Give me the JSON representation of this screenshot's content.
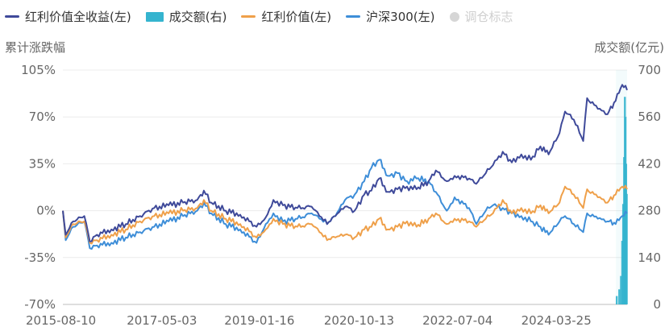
{
  "chart_data": {
    "type": "line",
    "legend": [
      {
        "key": "total",
        "label": "红利价值全收益(左)",
        "marker": "line",
        "color": "#3f4a9a"
      },
      {
        "key": "volume",
        "label": "成交额(右)",
        "marker": "bar",
        "color": "#35b4cf"
      },
      {
        "key": "value",
        "label": "红利价值(左)",
        "marker": "line",
        "color": "#efa04a"
      },
      {
        "key": "hs300",
        "label": "沪深300(左)",
        "marker": "line",
        "color": "#3e8ed8"
      },
      {
        "key": "rebalance",
        "label": "调仓标志",
        "marker": "dot",
        "color": "#d6d6d6",
        "inactive": true
      }
    ],
    "ylabel_left": "累计涨跌幅",
    "ylabel_right": "成交额(亿元)",
    "y_left_ticks": [
      "105%",
      "70%",
      "35%",
      "0%",
      "-35%",
      "-70%"
    ],
    "y_left_range": [
      -70,
      105
    ],
    "y_right_ticks": [
      "700",
      "560",
      "420",
      "280",
      "140",
      "0"
    ],
    "y_right_range": [
      0,
      700
    ],
    "x_ticks": [
      "2015-08-10",
      "2017-05-03",
      "2019-01-16",
      "2020-10-13",
      "2022-07-04",
      "2024-03-25"
    ],
    "x_range": [
      "2015-08-10",
      "2025-06-20"
    ],
    "grid": true,
    "series": [
      {
        "key": "total",
        "points": [
          [
            "2015-08-10",
            0
          ],
          [
            "2015-08-28",
            -18
          ],
          [
            "2015-10-15",
            -8
          ],
          [
            "2015-12-25",
            -4
          ],
          [
            "2016-01-29",
            -23
          ],
          [
            "2016-03-15",
            -18
          ],
          [
            "2016-06-15",
            -14
          ],
          [
            "2016-09-15",
            -10
          ],
          [
            "2016-12-15",
            -4
          ],
          [
            "2017-03-15",
            2
          ],
          [
            "2017-06-15",
            4
          ],
          [
            "2017-09-15",
            6
          ],
          [
            "2017-12-15",
            8
          ],
          [
            "2018-01-26",
            15
          ],
          [
            "2018-03-15",
            6
          ],
          [
            "2018-06-15",
            0
          ],
          [
            "2018-09-15",
            -3
          ],
          [
            "2018-12-28",
            -12
          ],
          [
            "2019-02-25",
            -5
          ],
          [
            "2019-04-15",
            8
          ],
          [
            "2019-06-15",
            4
          ],
          [
            "2019-09-15",
            2
          ],
          [
            "2019-12-15",
            3
          ],
          [
            "2020-02-03",
            -4
          ],
          [
            "2020-03-23",
            -10
          ],
          [
            "2020-05-15",
            -4
          ],
          [
            "2020-07-15",
            3
          ],
          [
            "2020-09-15",
            0
          ],
          [
            "2020-11-15",
            12
          ],
          [
            "2020-12-31",
            15
          ],
          [
            "2021-02-18",
            24
          ],
          [
            "2021-04-15",
            14
          ],
          [
            "2021-06-15",
            16
          ],
          [
            "2021-08-15",
            18
          ],
          [
            "2021-10-15",
            16
          ],
          [
            "2021-12-31",
            22
          ],
          [
            "2022-02-15",
            30
          ],
          [
            "2022-04-26",
            22
          ],
          [
            "2022-06-15",
            26
          ],
          [
            "2022-09-15",
            24
          ],
          [
            "2022-10-31",
            20
          ],
          [
            "2022-12-31",
            28
          ],
          [
            "2023-02-15",
            34
          ],
          [
            "2023-04-18",
            44
          ],
          [
            "2023-06-15",
            36
          ],
          [
            "2023-08-15",
            42
          ],
          [
            "2023-10-15",
            38
          ],
          [
            "2023-12-15",
            48
          ],
          [
            "2024-02-05",
            42
          ],
          [
            "2024-04-15",
            58
          ],
          [
            "2024-05-20",
            74
          ],
          [
            "2024-07-15",
            68
          ],
          [
            "2024-09-13",
            52
          ],
          [
            "2024-10-08",
            84
          ],
          [
            "2024-12-15",
            76
          ],
          [
            "2025-02-15",
            72
          ],
          [
            "2025-04-08",
            82
          ],
          [
            "2025-05-20",
            94
          ],
          [
            "2025-06-20",
            90
          ]
        ]
      },
      {
        "key": "value",
        "points": [
          [
            "2015-08-10",
            0
          ],
          [
            "2015-08-28",
            -20
          ],
          [
            "2015-10-15",
            -10
          ],
          [
            "2015-12-25",
            -8
          ],
          [
            "2016-01-29",
            -24
          ],
          [
            "2016-03-15",
            -22
          ],
          [
            "2016-06-15",
            -18
          ],
          [
            "2016-09-15",
            -14
          ],
          [
            "2016-12-15",
            -8
          ],
          [
            "2017-03-15",
            -4
          ],
          [
            "2017-06-15",
            -2
          ],
          [
            "2017-09-15",
            0
          ],
          [
            "2017-12-15",
            2
          ],
          [
            "2018-01-26",
            8
          ],
          [
            "2018-03-15",
            0
          ],
          [
            "2018-06-15",
            -6
          ],
          [
            "2018-09-15",
            -10
          ],
          [
            "2018-12-28",
            -20
          ],
          [
            "2019-02-25",
            -14
          ],
          [
            "2019-04-15",
            -6
          ],
          [
            "2019-06-15",
            -10
          ],
          [
            "2019-09-15",
            -12
          ],
          [
            "2019-12-15",
            -10
          ],
          [
            "2020-02-03",
            -16
          ],
          [
            "2020-03-23",
            -22
          ],
          [
            "2020-05-15",
            -20
          ],
          [
            "2020-07-15",
            -18
          ],
          [
            "2020-09-15",
            -20
          ],
          [
            "2020-11-15",
            -14
          ],
          [
            "2020-12-31",
            -12
          ],
          [
            "2021-02-18",
            -6
          ],
          [
            "2021-04-15",
            -14
          ],
          [
            "2021-06-15",
            -12
          ],
          [
            "2021-08-15",
            -8
          ],
          [
            "2021-10-15",
            -12
          ],
          [
            "2021-12-31",
            -6
          ],
          [
            "2022-02-15",
            -2
          ],
          [
            "2022-04-26",
            -10
          ],
          [
            "2022-06-15",
            -6
          ],
          [
            "2022-09-15",
            -8
          ],
          [
            "2022-10-31",
            -12
          ],
          [
            "2022-12-31",
            -6
          ],
          [
            "2023-02-15",
            -2
          ],
          [
            "2023-04-18",
            8
          ],
          [
            "2023-06-15",
            -2
          ],
          [
            "2023-08-15",
            2
          ],
          [
            "2023-10-15",
            -2
          ],
          [
            "2023-12-15",
            4
          ],
          [
            "2024-02-05",
            -2
          ],
          [
            "2024-04-15",
            6
          ],
          [
            "2024-05-20",
            18
          ],
          [
            "2024-07-15",
            12
          ],
          [
            "2024-09-13",
            2
          ],
          [
            "2024-10-08",
            16
          ],
          [
            "2024-12-15",
            10
          ],
          [
            "2025-02-15",
            6
          ],
          [
            "2025-04-08",
            12
          ],
          [
            "2025-05-20",
            18
          ],
          [
            "2025-06-20",
            16
          ]
        ]
      },
      {
        "key": "hs300",
        "points": [
          [
            "2015-08-10",
            0
          ],
          [
            "2015-08-28",
            -22
          ],
          [
            "2015-10-15",
            -12
          ],
          [
            "2015-12-25",
            -8
          ],
          [
            "2016-01-29",
            -28
          ],
          [
            "2016-03-15",
            -26
          ],
          [
            "2016-06-15",
            -24
          ],
          [
            "2016-09-15",
            -20
          ],
          [
            "2016-12-15",
            -16
          ],
          [
            "2017-03-15",
            -12
          ],
          [
            "2017-06-15",
            -8
          ],
          [
            "2017-09-15",
            -4
          ],
          [
            "2017-12-15",
            0
          ],
          [
            "2018-01-26",
            6
          ],
          [
            "2018-03-15",
            -2
          ],
          [
            "2018-06-15",
            -10
          ],
          [
            "2018-09-15",
            -14
          ],
          [
            "2018-12-28",
            -24
          ],
          [
            "2019-02-25",
            -10
          ],
          [
            "2019-04-15",
            -2
          ],
          [
            "2019-06-15",
            -8
          ],
          [
            "2019-09-15",
            -6
          ],
          [
            "2019-12-15",
            -2
          ],
          [
            "2020-02-03",
            -6
          ],
          [
            "2020-03-23",
            -10
          ],
          [
            "2020-05-15",
            -4
          ],
          [
            "2020-07-15",
            8
          ],
          [
            "2020-09-15",
            12
          ],
          [
            "2020-11-15",
            22
          ],
          [
            "2020-12-31",
            32
          ],
          [
            "2021-02-18",
            38
          ],
          [
            "2021-04-15",
            26
          ],
          [
            "2021-06-15",
            28
          ],
          [
            "2021-08-15",
            22
          ],
          [
            "2021-10-15",
            24
          ],
          [
            "2021-12-31",
            22
          ],
          [
            "2022-02-15",
            14
          ],
          [
            "2022-04-26",
            0
          ],
          [
            "2022-06-15",
            10
          ],
          [
            "2022-09-15",
            2
          ],
          [
            "2022-10-31",
            -10
          ],
          [
            "2022-12-31",
            0
          ],
          [
            "2023-02-15",
            4
          ],
          [
            "2023-04-18",
            2
          ],
          [
            "2023-06-15",
            -2
          ],
          [
            "2023-08-15",
            -4
          ],
          [
            "2023-10-15",
            -8
          ],
          [
            "2023-12-15",
            -12
          ],
          [
            "2024-02-05",
            -18
          ],
          [
            "2024-04-15",
            -8
          ],
          [
            "2024-05-20",
            -4
          ],
          [
            "2024-07-15",
            -10
          ],
          [
            "2024-09-13",
            -16
          ],
          [
            "2024-10-08",
            -2
          ],
          [
            "2024-12-15",
            -6
          ],
          [
            "2025-02-15",
            -8
          ],
          [
            "2025-04-08",
            -10
          ],
          [
            "2025-05-20",
            -4
          ],
          [
            "2025-06-20",
            -2
          ]
        ]
      }
    ],
    "volume": [
      [
        "2025-04-15",
        25
      ],
      [
        "2025-05-01",
        45
      ],
      [
        "2025-05-12",
        85
      ],
      [
        "2025-05-20",
        190
      ],
      [
        "2025-05-26",
        300
      ],
      [
        "2025-06-01",
        440
      ],
      [
        "2025-06-06",
        620
      ],
      [
        "2025-06-10",
        560
      ],
      [
        "2025-06-14",
        420
      ],
      [
        "2025-06-18",
        330
      ]
    ]
  }
}
